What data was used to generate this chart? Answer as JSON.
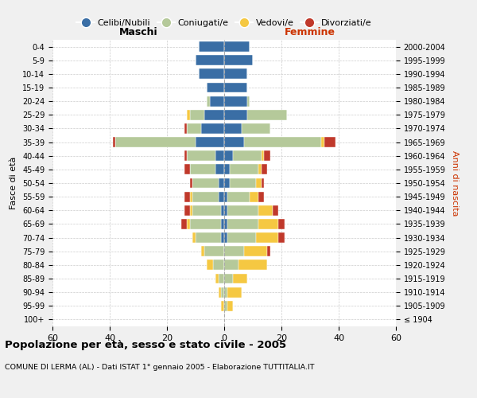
{
  "age_groups": [
    "100+",
    "95-99",
    "90-94",
    "85-89",
    "80-84",
    "75-79",
    "70-74",
    "65-69",
    "60-64",
    "55-59",
    "50-54",
    "45-49",
    "40-44",
    "35-39",
    "30-34",
    "25-29",
    "20-24",
    "15-19",
    "10-14",
    "5-9",
    "0-4"
  ],
  "birth_years": [
    "≤ 1904",
    "1905-1909",
    "1910-1914",
    "1915-1919",
    "1920-1924",
    "1925-1929",
    "1930-1934",
    "1935-1939",
    "1940-1944",
    "1945-1949",
    "1950-1954",
    "1955-1959",
    "1960-1964",
    "1965-1969",
    "1970-1974",
    "1975-1979",
    "1980-1984",
    "1985-1989",
    "1990-1994",
    "1995-1999",
    "2000-2004"
  ],
  "colors": {
    "celibi": "#3a6ea5",
    "coniugati": "#b5c99a",
    "vedovi": "#f5c842",
    "divorziati": "#c0392b"
  },
  "males": {
    "celibi": [
      0,
      0,
      0,
      0,
      0,
      0,
      1,
      1,
      1,
      2,
      2,
      3,
      3,
      10,
      8,
      7,
      5,
      6,
      9,
      10,
      9
    ],
    "coniugati": [
      0,
      0,
      1,
      2,
      4,
      7,
      9,
      11,
      10,
      9,
      9,
      9,
      10,
      28,
      5,
      5,
      1,
      0,
      0,
      0,
      0
    ],
    "vedovi": [
      0,
      1,
      1,
      1,
      2,
      1,
      1,
      1,
      1,
      1,
      0,
      0,
      0,
      0,
      0,
      1,
      0,
      0,
      0,
      0,
      0
    ],
    "divorziati": [
      0,
      0,
      0,
      0,
      0,
      0,
      0,
      2,
      2,
      2,
      1,
      2,
      1,
      1,
      1,
      0,
      0,
      0,
      0,
      0,
      0
    ]
  },
  "females": {
    "nubili": [
      0,
      0,
      0,
      0,
      0,
      0,
      1,
      1,
      1,
      1,
      2,
      2,
      3,
      7,
      6,
      8,
      8,
      8,
      8,
      10,
      9
    ],
    "coniugate": [
      0,
      1,
      1,
      3,
      5,
      7,
      10,
      11,
      11,
      8,
      9,
      10,
      10,
      27,
      10,
      14,
      1,
      0,
      0,
      0,
      0
    ],
    "vedove": [
      0,
      2,
      5,
      5,
      10,
      8,
      8,
      7,
      5,
      3,
      2,
      1,
      1,
      1,
      0,
      0,
      0,
      0,
      0,
      0,
      0
    ],
    "divorziate": [
      0,
      0,
      0,
      0,
      0,
      1,
      2,
      2,
      2,
      2,
      1,
      2,
      2,
      4,
      0,
      0,
      0,
      0,
      0,
      0,
      0
    ]
  },
  "xlim": 60,
  "title": "Popolazione per età, sesso e stato civile - 2005",
  "subtitle": "COMUNE DI LERMA (AL) - Dati ISTAT 1° gennaio 2005 - Elaborazione TUTTITALIA.IT",
  "ylabel_left": "Fasce di età",
  "ylabel_right": "Anni di nascita",
  "maschi_label": "Maschi",
  "femmine_label": "Femmine",
  "legend_labels": [
    "Celibi/Nubili",
    "Coniugati/e",
    "Vedovi/e",
    "Divorziati/e"
  ],
  "bg_color": "#f0f0f0",
  "plot_bg_color": "#ffffff"
}
